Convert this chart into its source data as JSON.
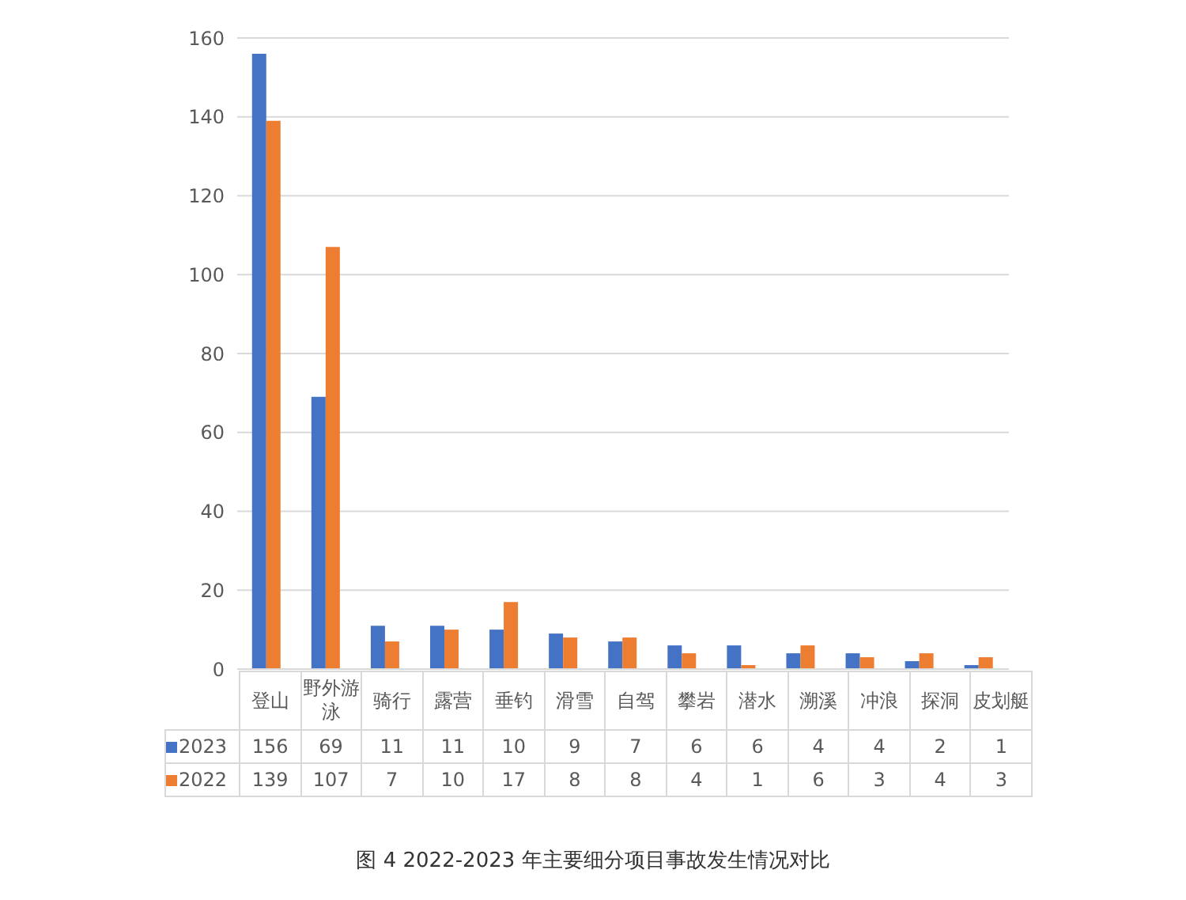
{
  "chart_data": {
    "type": "bar",
    "title": "图 4 2022-2023 年主要细分项目事故发生情况对比",
    "categories": [
      "登山",
      "野外游泳",
      "骑行",
      "露营",
      "垂钓",
      "滑雪",
      "自驾",
      "攀岩",
      "潜水",
      "溯溪",
      "冲浪",
      "探洞",
      "皮划艇"
    ],
    "series": [
      {
        "name": "2023",
        "color": "#4472c4",
        "values": [
          156,
          69,
          11,
          11,
          10,
          9,
          7,
          6,
          6,
          4,
          4,
          2,
          1
        ]
      },
      {
        "name": "2022",
        "color": "#ed7d31",
        "values": [
          139,
          107,
          7,
          10,
          17,
          8,
          8,
          4,
          1,
          6,
          3,
          4,
          3
        ]
      }
    ],
    "ylim": [
      0,
      160
    ],
    "yticks": [
      0,
      20,
      40,
      60,
      80,
      100,
      120,
      140,
      160
    ],
    "grid": "y",
    "legend": "bottom",
    "data_labels": true
  }
}
